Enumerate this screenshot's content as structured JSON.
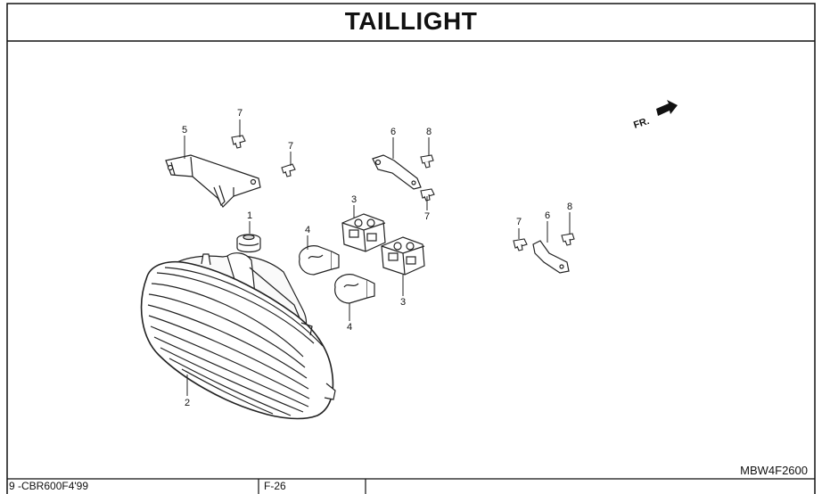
{
  "header": {
    "title": "TAILLIGHT"
  },
  "figure": {
    "code": "MBW4F2600",
    "direction_label": "FR.",
    "callouts": [
      "5",
      "7",
      "7",
      "6",
      "8",
      "3",
      "7",
      "1",
      "4",
      "3",
      "4",
      "2",
      "7",
      "6",
      "8"
    ]
  },
  "footer": {
    "model": "9 -CBR600F4'99",
    "page": "F-26"
  }
}
